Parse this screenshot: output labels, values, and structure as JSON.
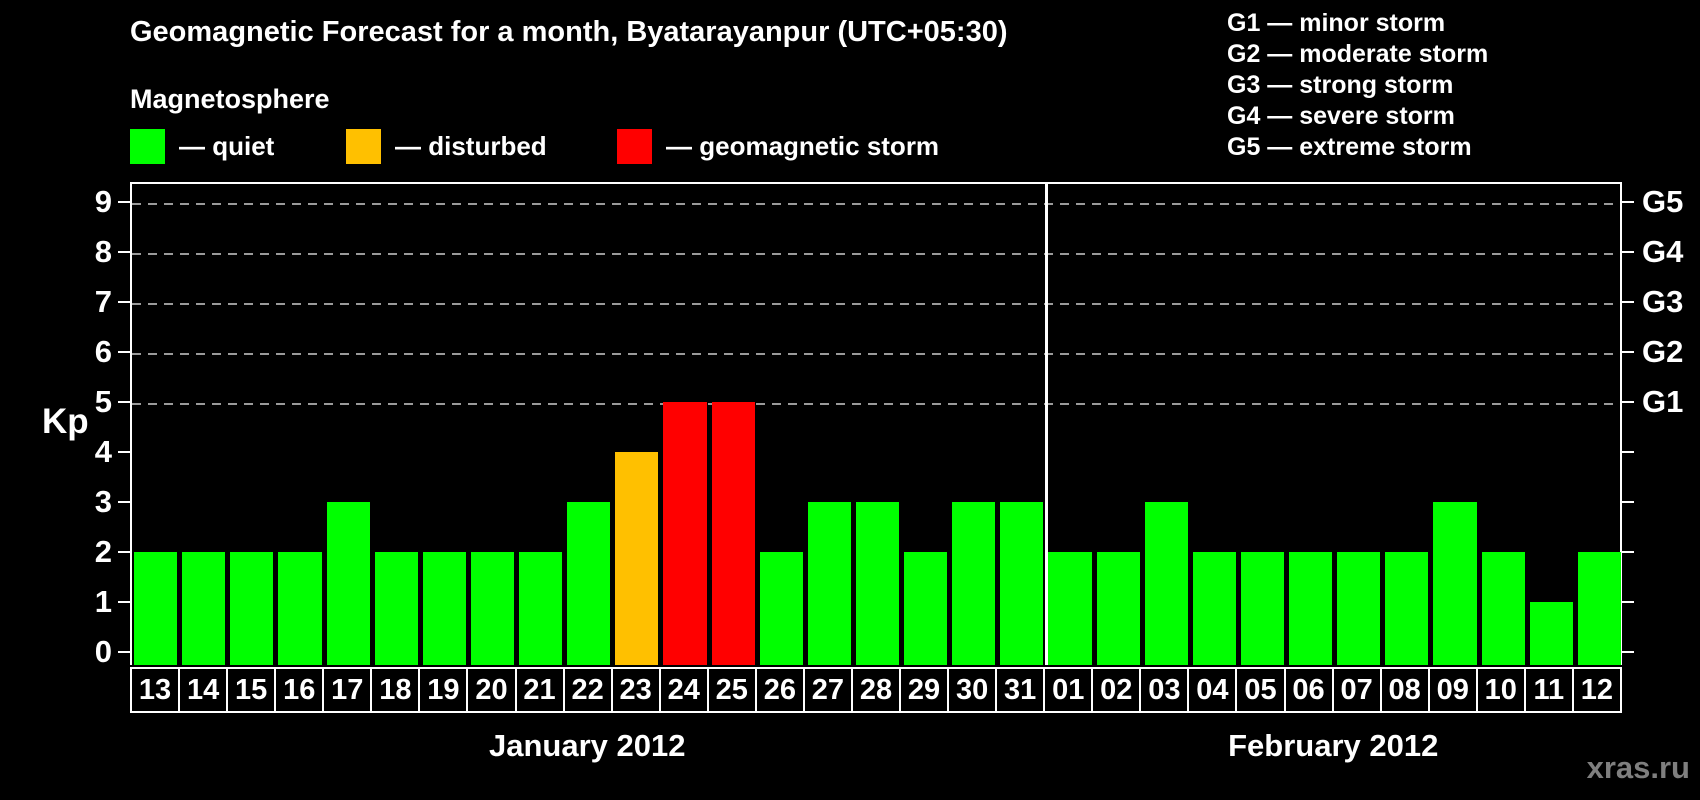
{
  "title": "Geomagnetic Forecast for a month, Byatarayanpur (UTC+05:30)",
  "magnetosphere_legend": {
    "heading": "Magnetosphere",
    "items": [
      {
        "key": "quiet",
        "label": "— quiet",
        "color": "#00FF00"
      },
      {
        "key": "disturbed",
        "label": "— disturbed",
        "color": "#FFC000"
      },
      {
        "key": "storm",
        "label": "— geomagnetic storm",
        "color": "#FF0000"
      }
    ]
  },
  "g_scale_legend": [
    "G1 — minor storm",
    "G2 — moderate storm",
    "G3 — strong storm",
    "G4 — severe storm",
    "G5 — extreme storm"
  ],
  "watermark": "xras.ru",
  "colors": {
    "quiet": "#00FF00",
    "disturbed": "#FFC000",
    "storm": "#FF0000",
    "background": "#000000",
    "axis": "#FFFFFF",
    "gridline": "#9A9A9A",
    "watermark": "#7F7F7F"
  },
  "chart_data": {
    "type": "bar",
    "ylabel": "Kp",
    "ylim": [
      0,
      9
    ],
    "yticks": [
      0,
      1,
      2,
      3,
      4,
      5,
      6,
      7,
      8,
      9
    ],
    "gridlines_at_kp": [
      5,
      6,
      7,
      8,
      9
    ],
    "grid": "dashed horizontal lines at storm levels only",
    "legend_position": "top",
    "right_axis_labels": [
      {
        "kp": 5,
        "label": "G1"
      },
      {
        "kp": 6,
        "label": "G2"
      },
      {
        "kp": 7,
        "label": "G3"
      },
      {
        "kp": 8,
        "label": "G4"
      },
      {
        "kp": 9,
        "label": "G5"
      }
    ],
    "months": [
      {
        "label": "January 2012",
        "days": [
          {
            "day": "13",
            "kp": 2,
            "state": "quiet"
          },
          {
            "day": "14",
            "kp": 2,
            "state": "quiet"
          },
          {
            "day": "15",
            "kp": 2,
            "state": "quiet"
          },
          {
            "day": "16",
            "kp": 2,
            "state": "quiet"
          },
          {
            "day": "17",
            "kp": 3,
            "state": "quiet"
          },
          {
            "day": "18",
            "kp": 2,
            "state": "quiet"
          },
          {
            "day": "19",
            "kp": 2,
            "state": "quiet"
          },
          {
            "day": "20",
            "kp": 2,
            "state": "quiet"
          },
          {
            "day": "21",
            "kp": 2,
            "state": "quiet"
          },
          {
            "day": "22",
            "kp": 3,
            "state": "quiet"
          },
          {
            "day": "23",
            "kp": 4,
            "state": "disturbed"
          },
          {
            "day": "24",
            "kp": 5,
            "state": "storm"
          },
          {
            "day": "25",
            "kp": 5,
            "state": "storm"
          },
          {
            "day": "26",
            "kp": 2,
            "state": "quiet"
          },
          {
            "day": "27",
            "kp": 3,
            "state": "quiet"
          },
          {
            "day": "28",
            "kp": 3,
            "state": "quiet"
          },
          {
            "day": "29",
            "kp": 2,
            "state": "quiet"
          },
          {
            "day": "30",
            "kp": 3,
            "state": "quiet"
          },
          {
            "day": "31",
            "kp": 3,
            "state": "quiet"
          }
        ]
      },
      {
        "label": "February 2012",
        "days": [
          {
            "day": "01",
            "kp": 2,
            "state": "quiet"
          },
          {
            "day": "02",
            "kp": 2,
            "state": "quiet"
          },
          {
            "day": "03",
            "kp": 3,
            "state": "quiet"
          },
          {
            "day": "04",
            "kp": 2,
            "state": "quiet"
          },
          {
            "day": "05",
            "kp": 2,
            "state": "quiet"
          },
          {
            "day": "06",
            "kp": 2,
            "state": "quiet"
          },
          {
            "day": "07",
            "kp": 2,
            "state": "quiet"
          },
          {
            "day": "08",
            "kp": 2,
            "state": "quiet"
          },
          {
            "day": "09",
            "kp": 3,
            "state": "quiet"
          },
          {
            "day": "10",
            "kp": 2,
            "state": "quiet"
          },
          {
            "day": "11",
            "kp": 1,
            "state": "quiet"
          },
          {
            "day": "12",
            "kp": 2,
            "state": "quiet"
          }
        ]
      }
    ]
  }
}
